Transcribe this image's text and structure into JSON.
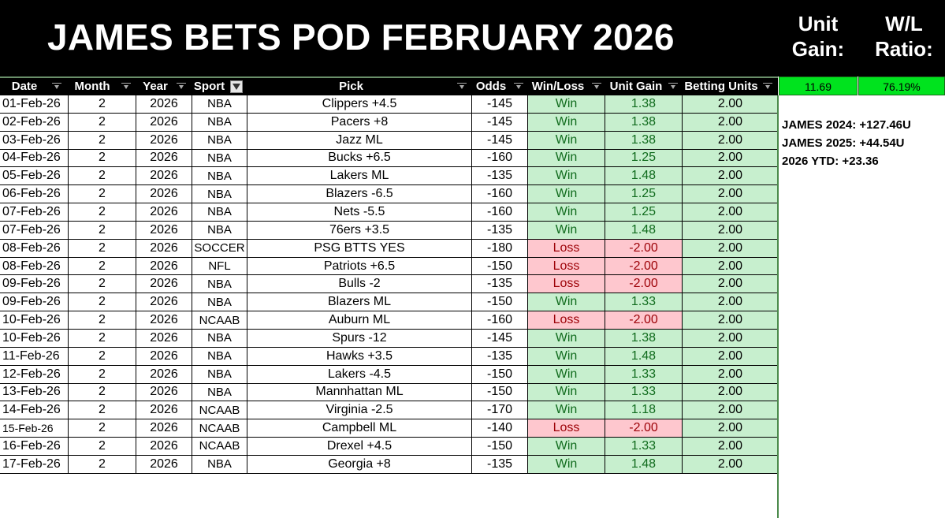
{
  "banner": {
    "title": "JAMES BETS POD FEBRUARY 2026",
    "unit_gain_label": "Unit\nGain:",
    "wl_ratio_label": "W/L\nRatio:"
  },
  "headers": [
    "Date",
    "Month",
    "Year",
    "Sport",
    "Pick",
    "Odds",
    "Win/Loss",
    "Unit Gain",
    "Betting Units"
  ],
  "summary": {
    "unit_gain": "11.69",
    "wl_ratio": "76.19%"
  },
  "notes": [
    "JAMES 2024: +127.46U",
    "JAMES 2025: +44.54U",
    "2026 YTD: +23.36"
  ],
  "colors": {
    "win_fill": "#c7efce",
    "win_text": "#106b1d",
    "loss_fill": "#fec7ce",
    "loss_text": "#9c0006",
    "summary_fill": "#00e31e"
  },
  "rows": [
    [
      "01-Feb-26",
      "2",
      "2026",
      "NBA",
      "Clippers +4.5",
      "-145",
      "Win",
      "1.38",
      "2.00"
    ],
    [
      "02-Feb-26",
      "2",
      "2026",
      "NBA",
      "Pacers +8",
      "-145",
      "Win",
      "1.38",
      "2.00"
    ],
    [
      "03-Feb-26",
      "2",
      "2026",
      "NBA",
      "Jazz ML",
      "-145",
      "Win",
      "1.38",
      "2.00"
    ],
    [
      "04-Feb-26",
      "2",
      "2026",
      "NBA",
      "Bucks +6.5",
      "-160",
      "Win",
      "1.25",
      "2.00"
    ],
    [
      "05-Feb-26",
      "2",
      "2026",
      "NBA",
      "Lakers ML",
      "-135",
      "Win",
      "1.48",
      "2.00"
    ],
    [
      "06-Feb-26",
      "2",
      "2026",
      "NBA",
      "Blazers -6.5",
      "-160",
      "Win",
      "1.25",
      "2.00"
    ],
    [
      "07-Feb-26",
      "2",
      "2026",
      "NBA",
      "Nets -5.5",
      "-160",
      "Win",
      "1.25",
      "2.00"
    ],
    [
      "07-Feb-26",
      "2",
      "2026",
      "NBA",
      "76ers +3.5",
      "-135",
      "Win",
      "1.48",
      "2.00"
    ],
    [
      "08-Feb-26",
      "2",
      "2026",
      "SOCCER",
      "PSG BTTS YES",
      "-180",
      "Loss",
      "-2.00",
      "2.00"
    ],
    [
      "08-Feb-26",
      "2",
      "2026",
      "NFL",
      "Patriots +6.5",
      "-150",
      "Loss",
      "-2.00",
      "2.00"
    ],
    [
      "09-Feb-26",
      "2",
      "2026",
      "NBA",
      "Bulls -2",
      "-135",
      "Loss",
      "-2.00",
      "2.00"
    ],
    [
      "09-Feb-26",
      "2",
      "2026",
      "NBA",
      "Blazers ML",
      "-150",
      "Win",
      "1.33",
      "2.00"
    ],
    [
      "10-Feb-26",
      "2",
      "2026",
      "NCAAB",
      "Auburn ML",
      "-160",
      "Loss",
      "-2.00",
      "2.00"
    ],
    [
      "10-Feb-26",
      "2",
      "2026",
      "NBA",
      "Spurs -12",
      "-145",
      "Win",
      "1.38",
      "2.00"
    ],
    [
      "11-Feb-26",
      "2",
      "2026",
      "NBA",
      "Hawks +3.5",
      "-135",
      "Win",
      "1.48",
      "2.00"
    ],
    [
      "12-Feb-26",
      "2",
      "2026",
      "NBA",
      "Lakers -4.5",
      "-150",
      "Win",
      "1.33",
      "2.00"
    ],
    [
      "13-Feb-26",
      "2",
      "2026",
      "NBA",
      "Mannhattan ML",
      "-150",
      "Win",
      "1.33",
      "2.00"
    ],
    [
      "14-Feb-26",
      "2",
      "2026",
      "NCAAB",
      "Virginia -2.5",
      "-170",
      "Win",
      "1.18",
      "2.00"
    ],
    [
      "15-Feb-26",
      "2",
      "2026",
      "NCAAB",
      "Campbell ML",
      "-140",
      "Loss",
      "-2.00",
      "2.00"
    ],
    [
      "16-Feb-26",
      "2",
      "2026",
      "NCAAB",
      "Drexel +4.5",
      "-150",
      "Win",
      "1.33",
      "2.00"
    ],
    [
      "17-Feb-26",
      "2",
      "2026",
      "NBA",
      "Georgia +8",
      "-135",
      "Win",
      "1.48",
      "2.00"
    ]
  ]
}
